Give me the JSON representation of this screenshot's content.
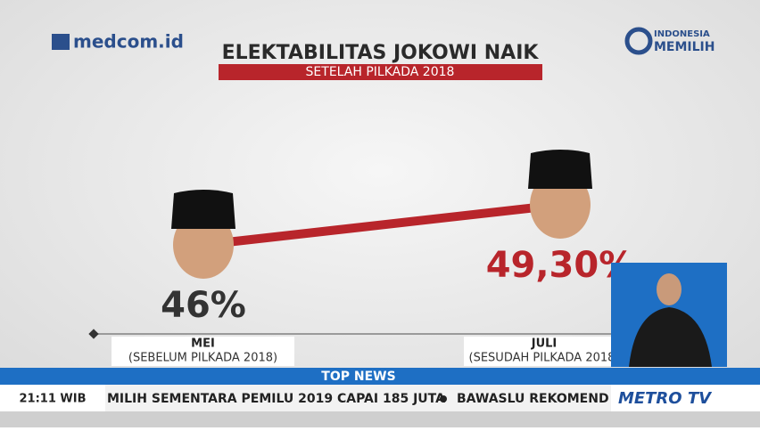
{
  "chart_data": {
    "type": "line",
    "title": "ELEKTABILITAS JOKOWI NAIK",
    "subtitle": "SETELAH PILKADA 2018",
    "categories": [
      "MEI",
      "JULI"
    ],
    "category_notes": [
      "(SEBELUM PILKADA 2018)",
      "(SESUDAH PILKADA 2018)"
    ],
    "values": [
      46,
      49.3
    ],
    "value_labels": [
      "46%",
      "49,30%"
    ],
    "color": "#b8252b",
    "label_colors": [
      "#333333",
      "#b8252b"
    ]
  },
  "branding": {
    "site": "medcom.id",
    "show_line1": "INDONESIA",
    "show_line2": "MEMILIH",
    "channel": "METRO TV"
  },
  "ticker": {
    "heading": "TOP NEWS",
    "time": "21:11 WIB",
    "items": [
      "MILIH SEMENTARA PEMILU 2019 CAPAI 185 JUTA",
      "BAWASLU REKOMEND"
    ]
  }
}
